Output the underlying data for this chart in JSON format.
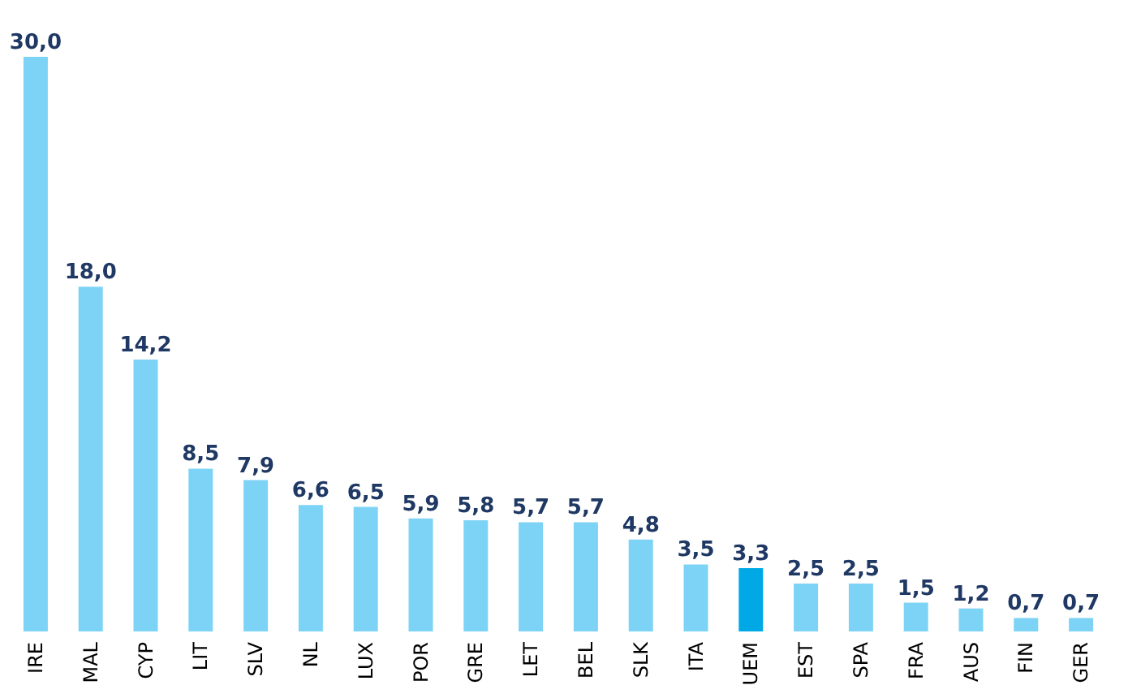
{
  "chart_data": {
    "type": "bar",
    "categories": [
      "IRE",
      "MAL",
      "CYP",
      "LIT",
      "SLV",
      "NL",
      "LUX",
      "POR",
      "GRE",
      "LET",
      "BEL",
      "SLK",
      "ITA",
      "UEM",
      "EST",
      "SPA",
      "FRA",
      "AUS",
      "FIN",
      "GER"
    ],
    "values": [
      30.0,
      18.0,
      14.2,
      8.5,
      7.9,
      6.6,
      6.5,
      5.9,
      5.8,
      5.7,
      5.7,
      4.8,
      3.5,
      3.3,
      2.5,
      2.5,
      1.5,
      1.2,
      0.7,
      0.7
    ],
    "value_labels": [
      "30,0",
      "18,0",
      "14,2",
      "8,5",
      "7,9",
      "6,6",
      "6,5",
      "5,9",
      "5,8",
      "5,7",
      "5,7",
      "4,8",
      "3,5",
      "3,3",
      "2,5",
      "2,5",
      "1,5",
      "1,2",
      "0,7",
      "0,7"
    ],
    "colors": [
      "#7dd3f5",
      "#7dd3f5",
      "#7dd3f5",
      "#7dd3f5",
      "#7dd3f5",
      "#7dd3f5",
      "#7dd3f5",
      "#7dd3f5",
      "#7dd3f5",
      "#7dd3f5",
      "#7dd3f5",
      "#7dd3f5",
      "#7dd3f5",
      "#00a9e6",
      "#7dd3f5",
      "#7dd3f5",
      "#7dd3f5",
      "#7dd3f5",
      "#7dd3f5",
      "#7dd3f5"
    ],
    "grid": false
  }
}
